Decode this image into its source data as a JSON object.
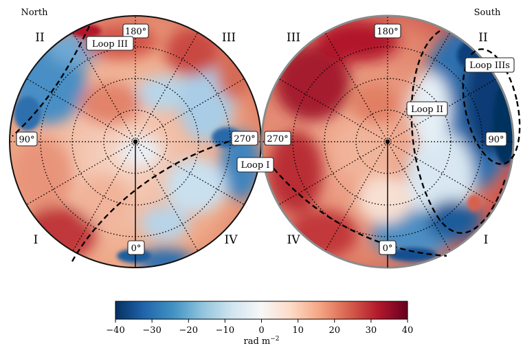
{
  "titles": {
    "north": "North",
    "south": "South"
  },
  "quadrants": {
    "north": {
      "top_left": "II",
      "top_right": "III",
      "bottom_left": "I",
      "bottom_right": "IV"
    },
    "south": {
      "top_left": "III",
      "top_right": "II",
      "bottom_left": "IV",
      "bottom_right": "I"
    }
  },
  "longitude_labels": {
    "north": {
      "top": "180°",
      "left": "90°",
      "right": "270°",
      "bottom": "0°"
    },
    "south": {
      "top": "180°",
      "left": "270°",
      "right": "90°",
      "bottom": "0°"
    }
  },
  "loop_labels": {
    "loop_i": "Loop I",
    "loop_ii": "Loop II",
    "loop_iii": "Loop III",
    "loop_iiis": "Loop IIIs"
  },
  "colorbar": {
    "ticks": [
      -40,
      -30,
      -20,
      -10,
      0,
      10,
      20,
      30,
      40
    ],
    "tick_labels": [
      "−40",
      "−30",
      "−20",
      "−10",
      "0",
      "10",
      "20",
      "30",
      "40"
    ],
    "label": "rad m",
    "label_exponent": "−2",
    "colormap": [
      "#053061",
      "#2166ac",
      "#4393c3",
      "#92c5de",
      "#d1e5f0",
      "#f7f7f7",
      "#fddbc7",
      "#f4a582",
      "#d6604d",
      "#b2182b",
      "#67001f"
    ]
  },
  "colors": {
    "grid": "#000000",
    "outline": "#111111"
  }
}
